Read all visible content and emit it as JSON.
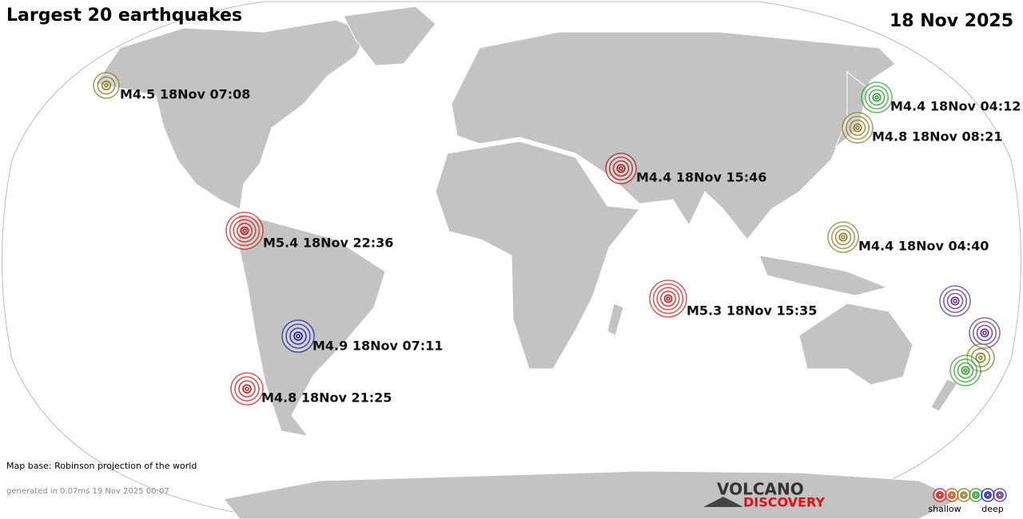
{
  "header": {
    "title": "Largest 20 earthquakes",
    "date": "18 Nov 2025"
  },
  "quakes": [
    {
      "label": "M4.5 18Nov 07:08",
      "color": "#8a7a1e"
    },
    {
      "label": "M4.4 18Nov 04:12",
      "color": "#2a9a2a"
    },
    {
      "label": "M4.8 18Nov 08:21",
      "color": "#8a7a1e"
    },
    {
      "label": "M4.4 18Nov 15:46",
      "color": "#b01010"
    },
    {
      "label": "M5.4 18Nov 22:36",
      "color": "#c81818"
    },
    {
      "label": "M4.4 18Nov 04:40",
      "color": "#8a7a1e"
    },
    {
      "label": "M5.3 18Nov 15:35",
      "color": "#c81818"
    },
    {
      "label": "M4.9 18Nov 07:11",
      "color": "#1a1aa0"
    },
    {
      "label": "M4.8 18Nov 21:25",
      "color": "#c81818"
    }
  ],
  "footer": {
    "map_base": "Map base: Robinson projection of the world",
    "generated": "generated in 0.07ms 19 Nov 2025 00:07"
  },
  "logo": {
    "line1": "VOLCANO",
    "line2": "DISCOVERY"
  },
  "legend": {
    "shallow": "shallow",
    "deep": "deep"
  }
}
